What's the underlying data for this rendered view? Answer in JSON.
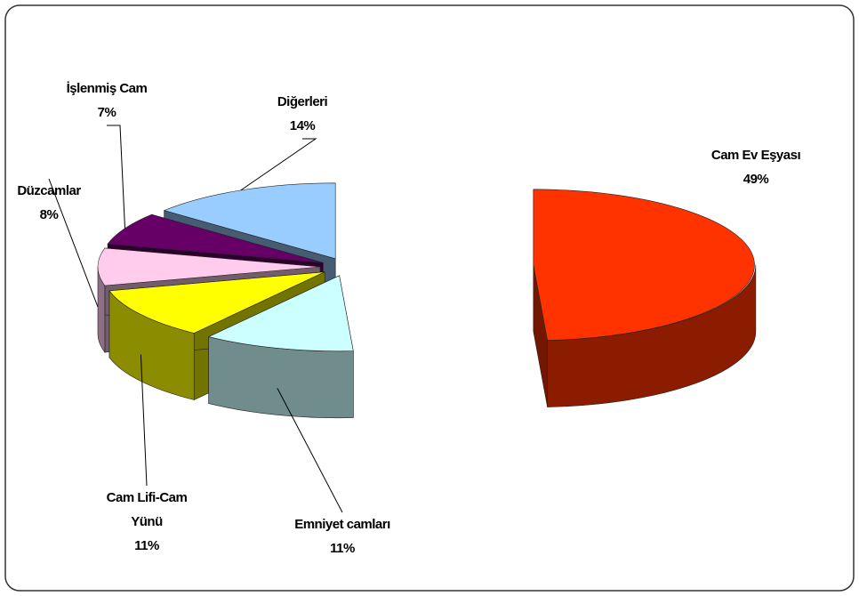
{
  "chart_data": {
    "type": "pie3d",
    "categories": [
      "Cam Ev Eşyası",
      "Emniyet camları",
      "Cam Lifi-Cam Yünü",
      "Düzcamlar",
      "İşlenmiş Cam",
      "Diğerleri"
    ],
    "values": [
      49,
      11,
      11,
      8,
      7,
      14
    ],
    "value_labels": [
      "49%",
      "11%",
      "11%",
      "8%",
      "7%",
      "14%"
    ],
    "colors": [
      "#ff3300",
      "#ccffff",
      "#ffff00",
      "#ffccee",
      "#660066",
      "#99ccff"
    ]
  }
}
